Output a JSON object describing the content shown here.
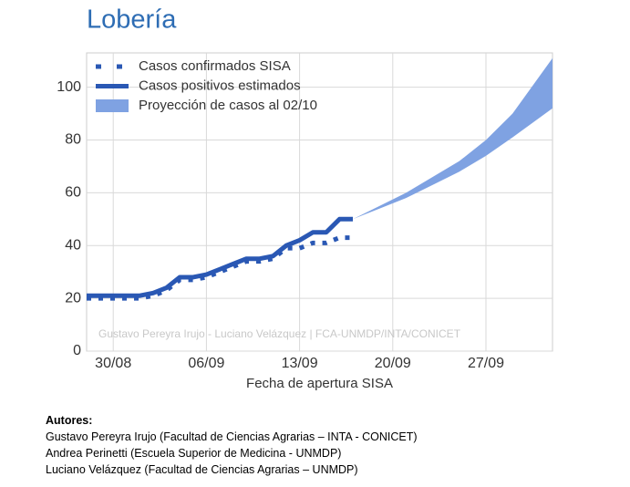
{
  "chart_data": {
    "type": "line",
    "title": "Lobería",
    "annotation": "Gustavo Pereyra Irujo - Luciano Velázquez | FCA-UNMDP/INTA/CONICET",
    "xlabel": "Fecha de apertura SISA",
    "xlim": [
      "28/08",
      "02/10"
    ],
    "xticks": [
      "30/08",
      "06/09",
      "13/09",
      "20/09",
      "27/09"
    ],
    "ylim": [
      0,
      113
    ],
    "yticks": [
      0,
      20,
      40,
      60,
      80,
      100
    ],
    "grid": true,
    "legend": "upper-left",
    "series": [
      {
        "name": "Casos confirmados SISA",
        "color": "#2a58b4",
        "style": "dotted",
        "x": [
          "28/08",
          "29/08",
          "30/08",
          "31/08",
          "01/09",
          "02/09",
          "03/09",
          "04/09",
          "05/09",
          "06/09",
          "07/09",
          "08/09",
          "09/09",
          "10/09",
          "11/09",
          "12/09",
          "13/09",
          "14/09",
          "15/09",
          "16/09",
          "17/09"
        ],
        "values": [
          20,
          20,
          20,
          20,
          20,
          21,
          23,
          27,
          27,
          28,
          30,
          32,
          34,
          34,
          35,
          39,
          39,
          41,
          41,
          43,
          43
        ]
      },
      {
        "name": "Casos positivos estimados",
        "color": "#2a58b4",
        "style": "solid",
        "x": [
          "28/08",
          "29/08",
          "30/08",
          "31/08",
          "01/09",
          "02/09",
          "03/09",
          "04/09",
          "05/09",
          "06/09",
          "07/09",
          "08/09",
          "09/09",
          "10/09",
          "11/09",
          "12/09",
          "13/09",
          "14/09",
          "15/09",
          "16/09",
          "17/09"
        ],
        "values": [
          21,
          21,
          21,
          21,
          21,
          22,
          24,
          28,
          28,
          29,
          31,
          33,
          35,
          35,
          36,
          40,
          42,
          45,
          45,
          50,
          50
        ]
      },
      {
        "name": "Proyección de casos al 02/10",
        "color": "#7fa2e2",
        "style": "band",
        "x": [
          "17/09",
          "19/09",
          "21/09",
          "23/09",
          "25/09",
          "27/09",
          "29/09",
          "02/10"
        ],
        "lower": [
          50,
          54,
          58,
          63,
          68,
          74,
          81,
          92
        ],
        "upper": [
          50,
          55,
          60,
          66,
          72,
          80,
          90,
          111
        ]
      }
    ]
  },
  "authors": {
    "heading": "Autores:",
    "lines": [
      "Gustavo Pereyra Irujo (Facultad de Ciencias Agrarias – INTA - CONICET)",
      "Andrea Perinetti (Escuela Superior de Medicina - UNMDP)",
      "Luciano Velázquez (Facultad de Ciencias Agrarias – UNMDP)"
    ]
  }
}
